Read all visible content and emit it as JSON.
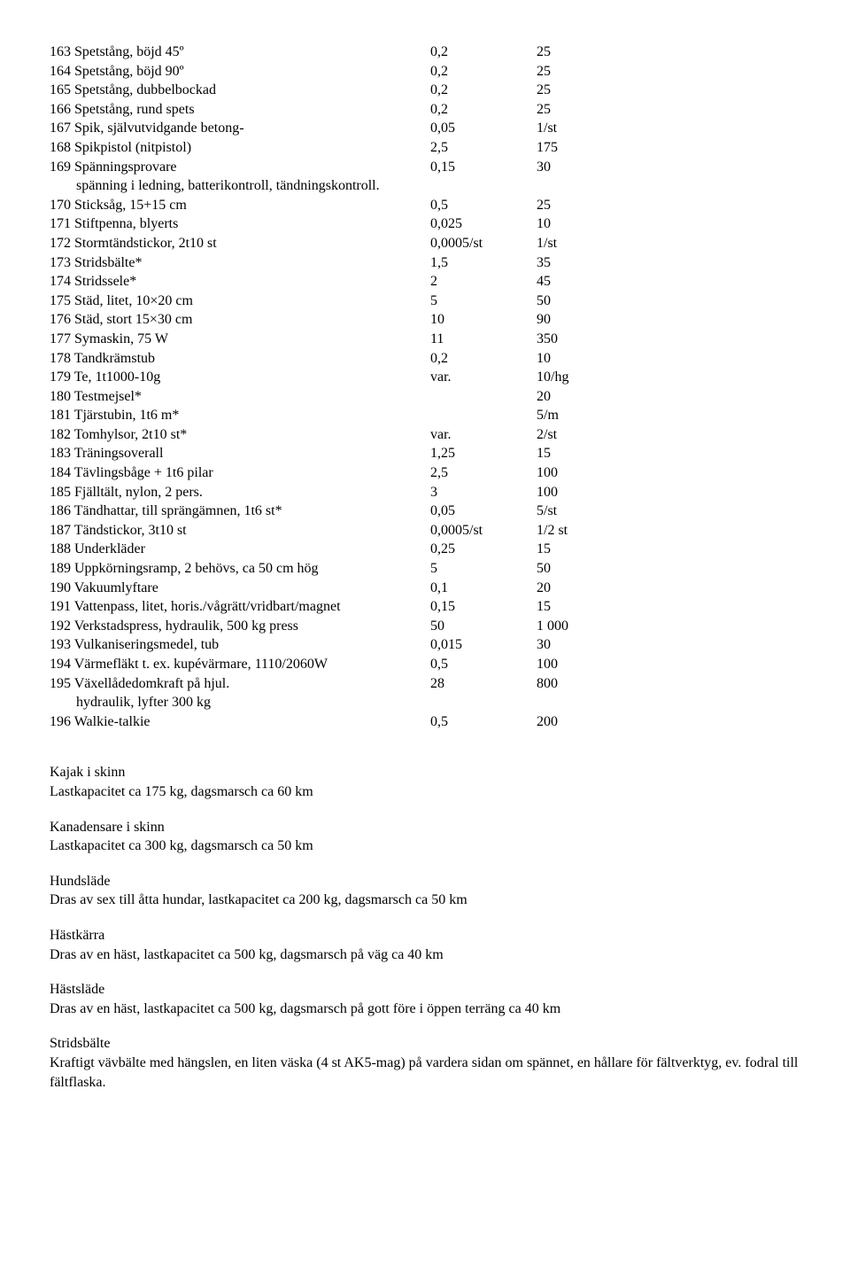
{
  "rows": [
    {
      "n": "163",
      "desc": "Spetstång, böjd 45º",
      "v1": "0,2",
      "v2": "25"
    },
    {
      "n": "164",
      "desc": "Spetstång, böjd 90º",
      "v1": "0,2",
      "v2": "25"
    },
    {
      "n": "165",
      "desc": "Spetstång, dubbelbockad",
      "v1": "0,2",
      "v2": "25"
    },
    {
      "n": "166",
      "desc": "Spetstång, rund spets",
      "v1": "0,2",
      "v2": "25"
    },
    {
      "n": "167",
      "desc": "Spik, självutvidgande betong-",
      "v1": "0,05",
      "v2": "1/st"
    },
    {
      "n": "168",
      "desc": "Spikpistol (nitpistol)",
      "v1": "2,5",
      "v2": "175"
    },
    {
      "n": "169",
      "desc": "Spänningsprovare",
      "v1": "0,15",
      "v2": "30",
      "note": "spänning i ledning, batterikontroll, tändningskontroll."
    },
    {
      "n": "170",
      "desc": "Sticksåg, 15+15 cm",
      "v1": "0,5",
      "v2": "25"
    },
    {
      "n": "171",
      "desc": "Stiftpenna, blyerts",
      "v1": "0,025",
      "v2": "10"
    },
    {
      "n": "172",
      "desc": "Stormtändstickor, 2t10 st",
      "v1": "0,0005/st",
      "v2": "1/st"
    },
    {
      "n": "173",
      "desc": "Stridsbälte*",
      "v1": "1,5",
      "v2": "35"
    },
    {
      "n": "174",
      "desc": "Stridssele*",
      "v1": "2",
      "v2": "45"
    },
    {
      "n": "175",
      "desc": "Städ, litet, 10×20 cm",
      "v1": "5",
      "v2": "50"
    },
    {
      "n": "176",
      "desc": "Städ, stort 15×30 cm",
      "v1": "10",
      "v2": "90"
    },
    {
      "n": "177",
      "desc": "Symaskin, 75 W",
      "v1": "11",
      "v2": "350"
    },
    {
      "n": "178",
      "desc": "Tandkrämstub",
      "v1": "0,2",
      "v2": "10"
    },
    {
      "n": "179",
      "desc": "Te, 1t1000-10g",
      "v1": "var.",
      "v2": "10/hg"
    },
    {
      "n": "180",
      "desc": "Testmejsel*",
      "v1": "",
      "v2": "20"
    },
    {
      "n": "181",
      "desc": "Tjärstubin, 1t6 m*",
      "v1": "",
      "v2": "5/m"
    },
    {
      "n": "182",
      "desc": "Tomhylsor, 2t10 st*",
      "v1": "var.",
      "v2": "2/st"
    },
    {
      "n": "183",
      "desc": "Träningsoverall",
      "v1": "1,25",
      "v2": "15"
    },
    {
      "n": "184",
      "desc": "Tävlingsbåge + 1t6 pilar",
      "v1": "2,5",
      "v2": "100"
    },
    {
      "n": "185",
      "desc": "Fjälltält, nylon, 2 pers.",
      "v1": "3",
      "v2": "100"
    },
    {
      "n": "186",
      "desc": "Tändhattar, till sprängämnen, 1t6 st*",
      "v1": "0,05",
      "v2": "5/st"
    },
    {
      "n": "187",
      "desc": "Tändstickor, 3t10 st",
      "v1": "0,0005/st",
      "v2": "1/2 st"
    },
    {
      "n": "188",
      "desc": "Underkläder",
      "v1": "0,25",
      "v2": "15"
    },
    {
      "n": "189",
      "desc": "Uppkörningsramp, 2 behövs, ca 50 cm hög",
      "v1": "5",
      "v2": "50"
    },
    {
      "n": "190",
      "desc": "Vakuumlyftare",
      "v1": "0,1",
      "v2": "20"
    },
    {
      "n": "191",
      "desc": "Vattenpass, litet, horis./vågrätt/vridbart/magnet",
      "v1": "0,15",
      "v2": "15"
    },
    {
      "n": "192",
      "desc": "Verkstadspress, hydraulik, 500 kg press",
      "v1": "50",
      "v2": "1 000"
    },
    {
      "n": "193",
      "desc": "Vulkaniseringsmedel, tub",
      "v1": "0,015",
      "v2": "30"
    },
    {
      "n": "194",
      "desc": "Värmefläkt t. ex. kupévärmare, 1110/2060W",
      "v1": "0,5",
      "v2": "100"
    },
    {
      "n": "195",
      "desc": "Växellådedomkraft på hjul.",
      "v1": "28",
      "v2": "800",
      "note": "hydraulik, lyfter 300 kg"
    },
    {
      "n": "196",
      "desc": "Walkie-talkie",
      "v1": "0,5",
      "v2": "200"
    }
  ],
  "sections": [
    {
      "title": "Kajak i skinn",
      "body": "Lastkapacitet ca 175 kg, dagsmarsch ca 60 km"
    },
    {
      "title": "Kanadensare i skinn",
      "body": "Lastkapacitet ca 300 kg, dagsmarsch ca 50 km"
    },
    {
      "title": "Hundsläde",
      "body": "Dras av sex till åtta hundar, lastkapacitet ca 200 kg, dagsmarsch ca 50 km"
    },
    {
      "title": "Hästkärra",
      "body": "Dras av en häst, lastkapacitet ca 500 kg, dagsmarsch på väg ca 40 km"
    },
    {
      "title": "Hästsläde",
      "body": "Dras av en häst, lastkapacitet ca 500 kg, dagsmarsch på gott före i öppen terräng ca 40 km"
    },
    {
      "title": "Stridsbälte",
      "body": "Kraftigt vävbälte med hängslen, en liten väska (4 st AK5-mag) på vardera sidan om spännet, en hållare för fältverktyg, ev. fodral till fältflaska."
    }
  ]
}
